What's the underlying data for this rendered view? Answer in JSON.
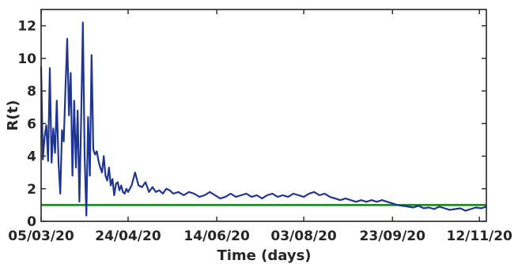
{
  "chart_data": {
    "type": "line",
    "title": "",
    "xlabel": "Time (days)",
    "ylabel": "R(t)",
    "x_start": "2020-03-05",
    "x_end": "2020-11-16",
    "xlim": [
      "2020-03-05",
      "2020-11-16"
    ],
    "ylim": [
      0,
      13
    ],
    "y_ticks": [
      0,
      2,
      4,
      6,
      8,
      10,
      12
    ],
    "x_ticks": [
      {
        "date": "2020-03-05",
        "label": "05/03/20"
      },
      {
        "date": "2020-04-24",
        "label": "24/04/20"
      },
      {
        "date": "2020-06-14",
        "label": "14/06/20"
      },
      {
        "date": "2020-08-03",
        "label": "03/08/20"
      },
      {
        "date": "2020-09-23",
        "label": "23/09/20"
      },
      {
        "date": "2020-11-12",
        "label": "12/11/20"
      }
    ],
    "grid": false,
    "series": [
      {
        "color": "#1f3595",
        "values": [
          [
            "2020-03-05",
            9.5
          ],
          [
            "2020-03-06",
            3.8
          ],
          [
            "2020-03-07",
            5.2
          ],
          [
            "2020-03-08",
            5.9
          ],
          [
            "2020-03-09",
            3.7
          ],
          [
            "2020-03-10",
            9.4
          ],
          [
            "2020-03-11",
            3.6
          ],
          [
            "2020-03-12",
            5.7
          ],
          [
            "2020-03-13",
            4.2
          ],
          [
            "2020-03-14",
            7.4
          ],
          [
            "2020-03-15",
            3.6
          ],
          [
            "2020-03-16",
            1.7
          ],
          [
            "2020-03-17",
            5.6
          ],
          [
            "2020-03-18",
            4.9
          ],
          [
            "2020-03-19",
            8.2
          ],
          [
            "2020-03-20",
            11.2
          ],
          [
            "2020-03-21",
            6.5
          ],
          [
            "2020-03-22",
            9.1
          ],
          [
            "2020-03-23",
            2.8
          ],
          [
            "2020-03-24",
            7.4
          ],
          [
            "2020-03-25",
            3.3
          ],
          [
            "2020-03-26",
            6.8
          ],
          [
            "2020-03-27",
            1.2
          ],
          [
            "2020-03-28",
            6.2
          ],
          [
            "2020-03-29",
            12.2
          ],
          [
            "2020-03-30",
            4.0
          ],
          [
            "2020-03-31",
            0.35
          ],
          [
            "2020-04-01",
            6.4
          ],
          [
            "2020-04-02",
            2.8
          ],
          [
            "2020-04-03",
            10.2
          ],
          [
            "2020-04-04",
            4.4
          ],
          [
            "2020-04-05",
            4.1
          ],
          [
            "2020-04-06",
            4.3
          ],
          [
            "2020-04-07",
            3.7
          ],
          [
            "2020-04-08",
            3.3
          ],
          [
            "2020-04-09",
            3.0
          ],
          [
            "2020-04-10",
            4.0
          ],
          [
            "2020-04-11",
            2.8
          ],
          [
            "2020-04-12",
            2.5
          ],
          [
            "2020-04-13",
            3.3
          ],
          [
            "2020-04-14",
            2.2
          ],
          [
            "2020-04-15",
            2.6
          ],
          [
            "2020-04-16",
            1.6
          ],
          [
            "2020-04-17",
            2.3
          ],
          [
            "2020-04-18",
            2.4
          ],
          [
            "2020-04-19",
            1.9
          ],
          [
            "2020-04-20",
            2.2
          ],
          [
            "2020-04-21",
            1.8
          ],
          [
            "2020-04-22",
            1.7
          ],
          [
            "2020-04-23",
            2.0
          ],
          [
            "2020-04-24",
            1.8
          ],
          [
            "2020-04-26",
            2.2
          ],
          [
            "2020-04-28",
            3.0
          ],
          [
            "2020-04-30",
            2.2
          ],
          [
            "2020-05-02",
            2.1
          ],
          [
            "2020-05-04",
            2.4
          ],
          [
            "2020-05-06",
            1.8
          ],
          [
            "2020-05-08",
            2.1
          ],
          [
            "2020-05-10",
            1.8
          ],
          [
            "2020-05-12",
            1.9
          ],
          [
            "2020-05-14",
            1.7
          ],
          [
            "2020-05-16",
            2.0
          ],
          [
            "2020-05-18",
            1.9
          ],
          [
            "2020-05-20",
            1.7
          ],
          [
            "2020-05-23",
            1.8
          ],
          [
            "2020-05-26",
            1.6
          ],
          [
            "2020-05-29",
            1.8
          ],
          [
            "2020-06-01",
            1.7
          ],
          [
            "2020-06-04",
            1.5
          ],
          [
            "2020-06-07",
            1.6
          ],
          [
            "2020-06-10",
            1.8
          ],
          [
            "2020-06-13",
            1.6
          ],
          [
            "2020-06-16",
            1.4
          ],
          [
            "2020-06-19",
            1.5
          ],
          [
            "2020-06-22",
            1.7
          ],
          [
            "2020-06-25",
            1.5
          ],
          [
            "2020-06-28",
            1.6
          ],
          [
            "2020-07-01",
            1.7
          ],
          [
            "2020-07-04",
            1.5
          ],
          [
            "2020-07-07",
            1.6
          ],
          [
            "2020-07-10",
            1.4
          ],
          [
            "2020-07-13",
            1.6
          ],
          [
            "2020-07-16",
            1.7
          ],
          [
            "2020-07-19",
            1.5
          ],
          [
            "2020-07-22",
            1.6
          ],
          [
            "2020-07-25",
            1.5
          ],
          [
            "2020-07-28",
            1.7
          ],
          [
            "2020-07-31",
            1.6
          ],
          [
            "2020-08-03",
            1.5
          ],
          [
            "2020-08-06",
            1.7
          ],
          [
            "2020-08-09",
            1.8
          ],
          [
            "2020-08-12",
            1.6
          ],
          [
            "2020-08-15",
            1.7
          ],
          [
            "2020-08-18",
            1.5
          ],
          [
            "2020-08-21",
            1.4
          ],
          [
            "2020-08-24",
            1.3
          ],
          [
            "2020-08-27",
            1.4
          ],
          [
            "2020-08-30",
            1.3
          ],
          [
            "2020-09-02",
            1.2
          ],
          [
            "2020-09-05",
            1.3
          ],
          [
            "2020-09-08",
            1.2
          ],
          [
            "2020-09-11",
            1.3
          ],
          [
            "2020-09-14",
            1.2
          ],
          [
            "2020-09-17",
            1.3
          ],
          [
            "2020-09-20",
            1.2
          ],
          [
            "2020-09-23",
            1.1
          ],
          [
            "2020-09-26",
            1.0
          ],
          [
            "2020-09-29",
            0.95
          ],
          [
            "2020-10-02",
            0.9
          ],
          [
            "2020-10-05",
            0.85
          ],
          [
            "2020-10-08",
            0.95
          ],
          [
            "2020-10-11",
            0.8
          ],
          [
            "2020-10-14",
            0.85
          ],
          [
            "2020-10-17",
            0.75
          ],
          [
            "2020-10-20",
            0.9
          ],
          [
            "2020-10-23",
            0.8
          ],
          [
            "2020-10-26",
            0.7
          ],
          [
            "2020-10-29",
            0.75
          ],
          [
            "2020-11-01",
            0.8
          ],
          [
            "2020-11-04",
            0.65
          ],
          [
            "2020-11-07",
            0.75
          ],
          [
            "2020-11-10",
            0.85
          ],
          [
            "2020-11-13",
            0.8
          ],
          [
            "2020-11-16",
            0.9
          ]
        ]
      }
    ],
    "reference_line": {
      "y": 1,
      "color": "#148314"
    }
  }
}
